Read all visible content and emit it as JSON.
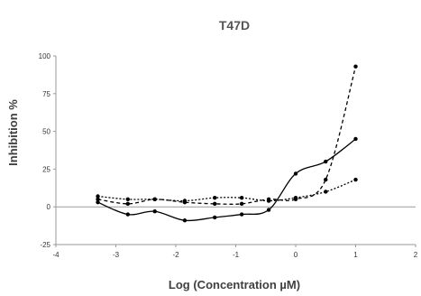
{
  "chart_data": {
    "type": "scatter",
    "title": "T47D",
    "xlabel": "Log (Concentration µM)",
    "ylabel": "Inhibition %",
    "xlim": [
      -4,
      2
    ],
    "ylim": [
      -25,
      100
    ],
    "xticks": [
      -4,
      -3,
      -2,
      -1,
      0,
      1,
      2
    ],
    "yticks": [
      -25,
      0,
      25,
      50,
      75,
      100
    ],
    "grid": false,
    "legend": "none",
    "series": [
      {
        "line_style": "solid",
        "smooth": true,
        "color": "#000000",
        "x": [
          -3.3,
          -2.8,
          -2.35,
          -1.85,
          -1.35,
          -0.9,
          -0.45,
          0,
          0.5,
          1
        ],
        "y": [
          3,
          -5,
          -3,
          -9,
          -7,
          -5,
          -2,
          22,
          30,
          45
        ]
      },
      {
        "line_style": "dashed",
        "smooth": true,
        "color": "#000000",
        "x": [
          -3.3,
          -2.8,
          -2.35,
          -1.85,
          -1.35,
          -0.9,
          -0.45,
          0,
          0.5,
          1
        ],
        "y": [
          5,
          2,
          5,
          3,
          2,
          2,
          5,
          5,
          18,
          93
        ]
      },
      {
        "line_style": "dotted",
        "smooth": true,
        "color": "#000000",
        "x": [
          -3.3,
          -2.8,
          -2.35,
          -1.85,
          -1.35,
          -0.9,
          -0.45,
          0,
          0.5,
          1
        ],
        "y": [
          7,
          5,
          5,
          4,
          6,
          6,
          4,
          6,
          10,
          18
        ]
      }
    ]
  }
}
